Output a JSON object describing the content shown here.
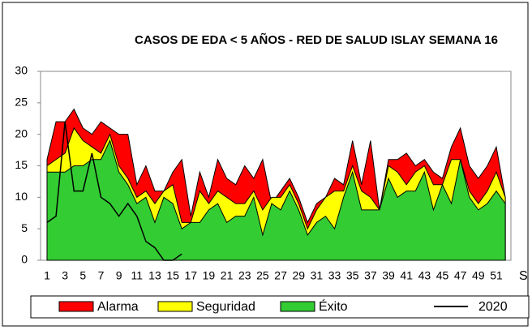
{
  "chart_data": {
    "type": "area",
    "title": "CASOS DE EDA < 5 AÑOS - RED DE SALUD ISLAY SEMANA 16",
    "x_label": "S",
    "categories": [
      1,
      null,
      3,
      null,
      5,
      null,
      7,
      null,
      9,
      null,
      11,
      null,
      13,
      null,
      15,
      null,
      17,
      null,
      19,
      null,
      21,
      null,
      23,
      null,
      25,
      null,
      27,
      null,
      29,
      null,
      31,
      null,
      33,
      null,
      35,
      null,
      37,
      null,
      39,
      null,
      41,
      null,
      43,
      null,
      45,
      null,
      47,
      null,
      49,
      null,
      51,
      null
    ],
    "series": [
      {
        "name": "Alarma",
        "color": "#ff0000",
        "kind": "area",
        "values": [
          16,
          22,
          22,
          24,
          21,
          20,
          22,
          21,
          20,
          20,
          12,
          15,
          11,
          11,
          14,
          16,
          7,
          14,
          10,
          16,
          13,
          12,
          15,
          13,
          16,
          9,
          11,
          13,
          10,
          6,
          9,
          10,
          13,
          12,
          19,
          12,
          19,
          8,
          16,
          16,
          17,
          15,
          16,
          14,
          13,
          18,
          21,
          15,
          13,
          15,
          18,
          10
        ]
      },
      {
        "name": "Seguridad",
        "color": "#ffff00",
        "kind": "area",
        "values": [
          15,
          16,
          17,
          21,
          19,
          18,
          17,
          20,
          15,
          13,
          10,
          11,
          9,
          11,
          12,
          6,
          6,
          11,
          9,
          11,
          10,
          9,
          9,
          11,
          8,
          10,
          10,
          12,
          9,
          5,
          8,
          10,
          11,
          11,
          15,
          11,
          10,
          8,
          15,
          14,
          12,
          14,
          15,
          12,
          12,
          16,
          16,
          11,
          9,
          11,
          14,
          10
        ]
      },
      {
        "name": "Éxito",
        "color": "#33cc33",
        "kind": "area",
        "values": [
          14,
          14,
          14,
          15,
          15,
          16,
          16,
          19,
          14,
          12,
          9,
          10,
          6,
          10,
          9,
          5,
          6,
          6,
          8,
          9,
          6,
          7,
          7,
          10,
          4,
          9,
          8,
          11,
          8,
          4,
          6,
          7,
          5,
          10,
          14,
          8,
          8,
          8,
          13,
          10,
          11,
          11,
          14,
          8,
          12,
          9,
          16,
          10,
          8,
          9,
          11,
          9
        ]
      },
      {
        "name": "2020",
        "color": "#000000",
        "kind": "line",
        "values": [
          6,
          7,
          22,
          11,
          11,
          17,
          10,
          9,
          7,
          9,
          7,
          3,
          2,
          0,
          0,
          1,
          null,
          null,
          null,
          null,
          null,
          null,
          null,
          null,
          null,
          null,
          null,
          null,
          null,
          null,
          null,
          null,
          null,
          null,
          null,
          null,
          null,
          null,
          null,
          null,
          null,
          null,
          null,
          null,
          null,
          null,
          null,
          null,
          null,
          null,
          null,
          null
        ]
      }
    ],
    "ylim": [
      0,
      30
    ],
    "yticks": [
      0,
      5,
      10,
      15,
      20,
      25,
      30
    ],
    "grid": false,
    "legend": "bottom"
  }
}
